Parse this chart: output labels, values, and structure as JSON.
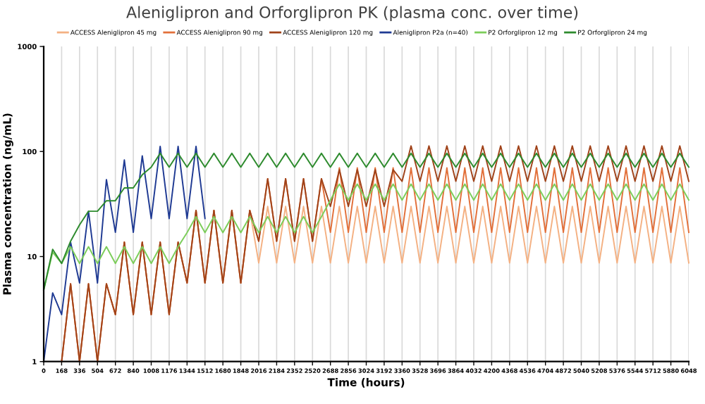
{
  "chart_data": {
    "type": "line",
    "title": "Aleniglipron and Orforglipron PK (plasma conc. over time)",
    "xlabel": "Time (hours)",
    "ylabel": "Plasma concentration (ng/mL)",
    "x": [
      0,
      84,
      168,
      252,
      336,
      420,
      504,
      588,
      672,
      756,
      840,
      924,
      1008,
      1092,
      1176,
      1260,
      1344,
      1428,
      1512,
      1596,
      1680,
      1764,
      1848,
      1932,
      2016,
      2100,
      2184,
      2268,
      2352,
      2436,
      2520,
      2604,
      2688,
      2772,
      2856,
      2940,
      3024,
      3108,
      3192,
      3276,
      3360,
      3444,
      3528,
      3612,
      3696,
      3780,
      3864,
      3948,
      4032,
      4116,
      4200,
      4284,
      4368,
      4452,
      4536,
      4620,
      4704,
      4788,
      4872,
      4956,
      5040,
      5124,
      5208,
      5292,
      5376,
      5460,
      5544,
      5628,
      5712,
      5796,
      5880,
      5964,
      6048
    ],
    "series": [
      {
        "name": "ACCESS Aleniglipron 45 mg",
        "color": "#f4b183",
        "values": [
          null,
          null,
          1,
          5.5,
          1,
          5.5,
          1,
          5.5,
          2.8,
          13.7,
          2.8,
          13.7,
          2.8,
          13.7,
          2.8,
          13.7,
          5.6,
          27.5,
          5.6,
          27.5,
          5.6,
          27.5,
          5.6,
          27.5,
          8.7,
          30,
          8.7,
          30,
          8.7,
          30,
          8.7,
          30,
          8.7,
          30,
          8.7,
          30,
          8.7,
          30,
          8.7,
          30,
          8.7,
          30,
          8.7,
          30,
          8.7,
          30,
          8.7,
          30,
          8.7,
          30,
          8.7,
          30,
          8.7,
          30,
          8.7,
          30,
          8.7,
          30,
          8.7,
          30,
          8.7,
          30,
          8.7,
          30,
          8.7,
          30,
          8.7,
          30,
          8.7,
          30,
          8.7,
          30,
          8.7
        ]
      },
      {
        "name": "ACCESS Aleniglipron 90 mg",
        "color": "#e2703a",
        "values": [
          null,
          null,
          1,
          5.5,
          1,
          5.5,
          1,
          5.5,
          2.8,
          13.7,
          2.8,
          13.7,
          2.8,
          13.7,
          2.8,
          13.7,
          5.6,
          27.5,
          5.6,
          27.5,
          5.6,
          27.5,
          5.6,
          27.5,
          14,
          55,
          14,
          55,
          14,
          55,
          14,
          55,
          17,
          70,
          17,
          70,
          17,
          70,
          17,
          70,
          17,
          70,
          17,
          70,
          17,
          70,
          17,
          70,
          17,
          70,
          17,
          70,
          17,
          70,
          17,
          70,
          17,
          70,
          17,
          70,
          17,
          70,
          17,
          70,
          17,
          70,
          17,
          70,
          17,
          70,
          17,
          70,
          17
        ]
      },
      {
        "name": "ACCESS Aleniglipron 120 mg",
        "color": "#a0431a",
        "values": [
          null,
          null,
          1,
          5.5,
          1,
          5.5,
          1,
          5.5,
          2.8,
          13.7,
          2.8,
          13.7,
          2.8,
          13.7,
          2.8,
          13.7,
          5.6,
          27.5,
          5.6,
          27.5,
          5.6,
          27.5,
          5.6,
          27.5,
          14,
          55,
          14,
          55,
          14,
          55,
          14,
          55,
          30,
          67,
          30,
          67,
          30,
          67,
          30,
          67,
          52,
          113,
          52,
          113,
          52,
          113,
          52,
          113,
          52,
          113,
          52,
          113,
          52,
          113,
          52,
          113,
          52,
          113,
          52,
          113,
          52,
          113,
          52,
          113,
          52,
          113,
          52,
          113,
          52,
          113,
          52,
          113,
          52
        ]
      },
      {
        "name": "Aleniglipron P2a (n=40)",
        "color": "#1f3a93",
        "values": [
          1,
          4.5,
          2.8,
          13.7,
          5.6,
          27,
          5.6,
          54,
          17,
          83,
          17,
          91,
          23,
          112,
          23,
          112,
          23,
          112,
          23,
          null,
          null,
          null,
          null,
          null,
          null,
          null,
          null,
          null,
          null,
          null,
          null,
          null,
          null,
          null,
          null,
          null,
          null,
          null,
          null,
          null,
          null,
          null,
          null,
          null,
          null,
          null,
          null,
          null,
          null,
          null,
          null,
          null,
          null,
          null,
          null,
          null,
          null,
          null,
          null,
          null,
          null,
          null,
          null,
          null,
          null,
          null,
          null,
          null,
          null,
          null,
          null,
          null,
          null
        ]
      },
      {
        "name": "P2 Orforglipron 12 mg",
        "color": "#7ccd5a",
        "values": [
          4.8,
          11,
          8.6,
          12.4,
          8.6,
          12.4,
          8.6,
          12.4,
          8.6,
          12.4,
          8.6,
          12.4,
          8.6,
          12.4,
          8.6,
          12.4,
          16.9,
          24,
          16.9,
          24,
          16.9,
          24,
          16.9,
          24,
          16.9,
          24,
          16.9,
          24,
          16.9,
          24,
          16.9,
          24,
          34.5,
          49,
          34.5,
          49,
          34.5,
          49,
          34.5,
          49,
          34.5,
          49,
          34.5,
          49,
          34.5,
          49,
          34.5,
          49,
          34.5,
          49,
          34.5,
          49,
          34.5,
          49,
          34.5,
          49,
          34.5,
          49,
          34.5,
          49,
          34.5,
          49,
          34.5,
          49,
          34.5,
          49,
          34.5,
          49,
          34.5,
          49,
          34.5,
          49,
          34.5
        ]
      },
      {
        "name": "P2 Orforglipron 24 mg",
        "color": "#2e8b2e",
        "values": [
          4.8,
          11.7,
          8.6,
          14,
          20,
          27,
          27,
          34,
          34,
          45,
          45,
          60,
          71,
          96,
          71,
          96,
          71,
          96,
          71,
          96,
          71,
          96,
          71,
          96,
          71,
          96,
          71,
          96,
          71,
          96,
          71,
          96,
          71,
          96,
          71,
          96,
          71,
          96,
          71,
          96,
          71,
          96,
          71,
          96,
          71,
          96,
          71,
          96,
          71,
          96,
          71,
          96,
          71,
          96,
          71,
          96,
          71,
          96,
          71,
          96,
          71,
          96,
          71,
          96,
          71,
          96,
          71,
          96,
          71,
          96,
          71,
          96,
          71
        ]
      }
    ],
    "log": "y",
    "xlim": [
      0,
      6048
    ],
    "ylim": [
      1,
      1000
    ],
    "xticks": [
      0,
      168,
      336,
      504,
      672,
      840,
      1008,
      1176,
      1344,
      1512,
      1680,
      1848,
      2016,
      2184,
      2352,
      2520,
      2688,
      2856,
      3024,
      3192,
      3360,
      3528,
      3696,
      3864,
      4032,
      4200,
      4368,
      4536,
      4704,
      4872,
      5040,
      5208,
      5376,
      5544,
      5712,
      5880,
      6048
    ],
    "yticks": [
      1,
      10,
      100,
      1000
    ],
    "grid": "x",
    "legend": "top",
    "marker": "none",
    "line_style": "solid"
  }
}
